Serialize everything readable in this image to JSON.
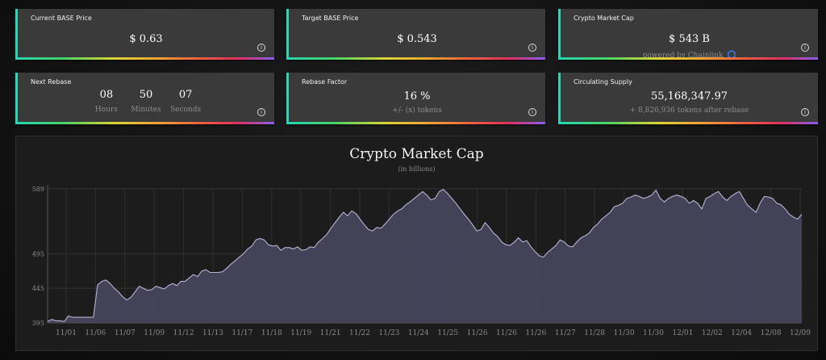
{
  "cards": {
    "current_price": {
      "title": "Current BASE Price",
      "value": "$ 0.63"
    },
    "target_price": {
      "title": "Target BASE Price",
      "value": "$ 0.543"
    },
    "market_cap": {
      "title": "Crypto Market Cap",
      "value": "$ 543 B",
      "sub": "powered by Chainlink"
    },
    "next_rebase": {
      "title": "Next Rebase",
      "hours": "08",
      "hours_label": "Hours",
      "minutes": "50",
      "minutes_label": "Minutes",
      "seconds": "07",
      "seconds_label": "Seconds"
    },
    "rebase_factor": {
      "title": "Rebase Factor",
      "value": "16 %",
      "sub": "+/- (x) tokens"
    },
    "circulating_supply": {
      "title": "Circulating Supply",
      "value": "55,168,347.97",
      "sub": "+ 8,826,936 tokens after rebase"
    }
  },
  "icons": {
    "info": "info-icon",
    "chainlink": "chainlink-icon"
  },
  "colors": {
    "accent_teal": "#2ad6b5",
    "area_fill": "#4a4860",
    "line": "#b7b3d6"
  },
  "chart_data": {
    "type": "area",
    "title": "Crypto Market Cap",
    "subtitle": "(in billions)",
    "ylim": [
      395,
      590
    ],
    "yticks": [
      395,
      445,
      495,
      589
    ],
    "xticks": [
      "11/01",
      "11/06",
      "11/07",
      "11/09",
      "11/12",
      "11/13",
      "11/17",
      "11/18",
      "11/19",
      "11/21",
      "11/22",
      "11/23",
      "11/24",
      "11/25",
      "11/26",
      "11/26",
      "11/26",
      "11/27",
      "11/28",
      "11/30",
      "11/30",
      "12/01",
      "12/02",
      "12/04",
      "12/08",
      "12/09"
    ],
    "grid": true,
    "series": [
      {
        "values": [
          397,
          400,
          398,
          398,
          397,
          405,
          403,
          403,
          403,
          403,
          403,
          403,
          450,
          455,
          457,
          452,
          445,
          440,
          433,
          428,
          432,
          440,
          448,
          445,
          442,
          443,
          448,
          446,
          444,
          449,
          452,
          449,
          455,
          455,
          460,
          465,
          462,
          470,
          472,
          468,
          468,
          468,
          469,
          474,
          480,
          485,
          490,
          495,
          502,
          506,
          515,
          517,
          515,
          508,
          506,
          507,
          500,
          504,
          504,
          502,
          505,
          500,
          501,
          505,
          504,
          512,
          517,
          523,
          532,
          540,
          548,
          555,
          550,
          557,
          553,
          545,
          537,
          530,
          528,
          533,
          532,
          538,
          545,
          552,
          557,
          560,
          566,
          570,
          575,
          580,
          585,
          580,
          573,
          575,
          585,
          588,
          582,
          575,
          568,
          560,
          552,
          545,
          537,
          528,
          530,
          540,
          533,
          525,
          520,
          512,
          508,
          507,
          512,
          518,
          512,
          514,
          505,
          498,
          492,
          490,
          497,
          502,
          507,
          515,
          512,
          506,
          505,
          512,
          518,
          521,
          525,
          533,
          538,
          545,
          550,
          555,
          563,
          565,
          568,
          575,
          577,
          580,
          578,
          575,
          577,
          580,
          587,
          575,
          570,
          575,
          578,
          580,
          578,
          575,
          568,
          572,
          568,
          560,
          575,
          578,
          582,
          585,
          577,
          572,
          578,
          582,
          585,
          575,
          565,
          560,
          555,
          568,
          578,
          577,
          575,
          568,
          566,
          560,
          552,
          548,
          545,
          552
        ]
      }
    ]
  }
}
